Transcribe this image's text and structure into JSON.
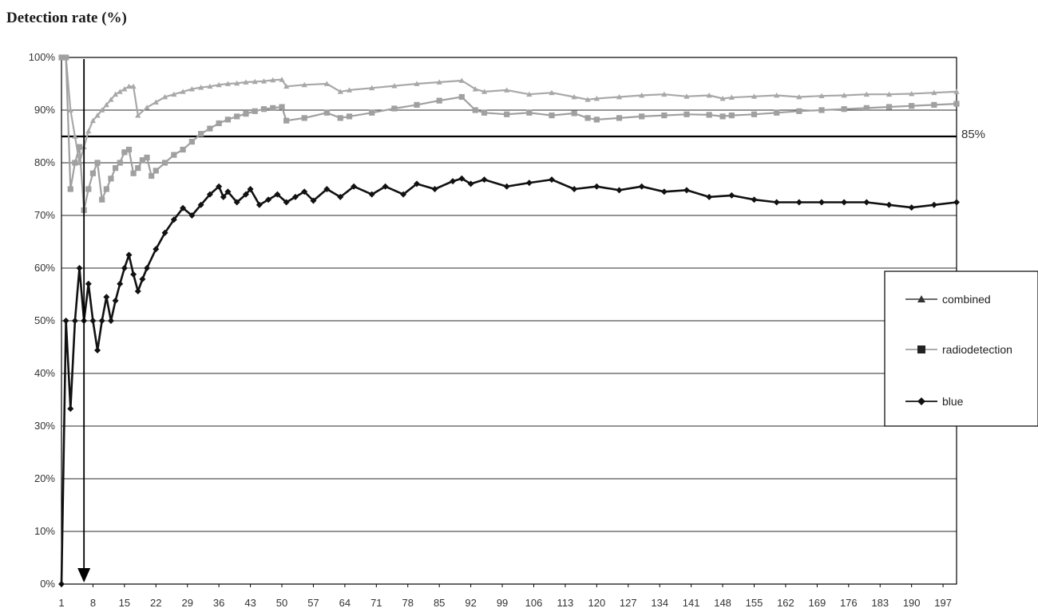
{
  "chart_data": {
    "type": "line",
    "title": "Detection rate (%)",
    "xlabel": "",
    "ylabel": "",
    "x_tick_labels": [
      "1",
      "8",
      "15",
      "22",
      "29",
      "36",
      "43",
      "50",
      "57",
      "64",
      "71",
      "78",
      "85",
      "92",
      "99",
      "106",
      "113",
      "120",
      "127",
      "134",
      "141",
      "148",
      "155",
      "162",
      "169",
      "176",
      "183",
      "190",
      "197"
    ],
    "xlim": [
      1,
      200
    ],
    "y_tick_labels": [
      "0%",
      "10%",
      "20%",
      "30%",
      "40%",
      "50%",
      "60%",
      "70%",
      "80%",
      "90%",
      "100%"
    ],
    "ylim": [
      0,
      100
    ],
    "grid": true,
    "legend_position": "right",
    "reference_line": {
      "value": 85,
      "label": "85%"
    },
    "series": [
      {
        "name": "combined",
        "marker": "triangle",
        "color": "#a8a8a8",
        "x": [
          1,
          2,
          3,
          4,
          5,
          6,
          7,
          8,
          9,
          10,
          11,
          12,
          13,
          14,
          15,
          16,
          17,
          18,
          20,
          22,
          24,
          26,
          28,
          30,
          32,
          34,
          36,
          38,
          40,
          42,
          44,
          46,
          48,
          50,
          51,
          55,
          60,
          63,
          65,
          70,
          75,
          80,
          85,
          90,
          93,
          95,
          100,
          105,
          110,
          115,
          118,
          120,
          125,
          130,
          135,
          140,
          145,
          148,
          150,
          155,
          160,
          165,
          170,
          175,
          180,
          185,
          190,
          195,
          200
        ],
        "y": [
          100,
          100,
          90,
          85,
          80,
          83,
          86,
          88,
          89,
          90,
          91,
          92,
          93,
          93.5,
          94,
          94.5,
          94.5,
          89,
          90.5,
          91.5,
          92.5,
          93,
          93.5,
          94,
          94.3,
          94.5,
          94.8,
          95,
          95.1,
          95.3,
          95.4,
          95.5,
          95.7,
          95.8,
          94.5,
          94.8,
          95,
          93.5,
          93.8,
          94.2,
          94.6,
          95,
          95.3,
          95.6,
          94,
          93.5,
          93.8,
          93,
          93.3,
          92.5,
          92,
          92.2,
          92.5,
          92.8,
          93,
          92.6,
          92.8,
          92.2,
          92.4,
          92.6,
          92.8,
          92.5,
          92.7,
          92.8,
          93,
          93,
          93.1,
          93.3,
          93.5
        ]
      },
      {
        "name": "radiodetection",
        "marker": "square",
        "color": "#a0a0a0",
        "x": [
          1,
          2,
          3,
          4,
          5,
          6,
          7,
          8,
          9,
          10,
          11,
          12,
          13,
          14,
          15,
          16,
          17,
          18,
          19,
          20,
          21,
          22,
          24,
          26,
          28,
          30,
          32,
          34,
          36,
          38,
          40,
          42,
          44,
          46,
          48,
          50,
          51,
          55,
          60,
          63,
          65,
          70,
          75,
          80,
          85,
          90,
          93,
          95,
          100,
          105,
          110,
          115,
          118,
          120,
          125,
          130,
          135,
          140,
          145,
          148,
          150,
          155,
          160,
          165,
          170,
          175,
          180,
          185,
          190,
          195,
          200
        ],
        "y": [
          100,
          100,
          75,
          80,
          83,
          71,
          75,
          78,
          80,
          73,
          75,
          77,
          79,
          80,
          82,
          82.5,
          78,
          79,
          80.5,
          81,
          77.5,
          78.5,
          80,
          81.5,
          82.5,
          84,
          85.5,
          86.5,
          87.5,
          88.2,
          88.8,
          89.3,
          89.8,
          90.2,
          90.4,
          90.6,
          88,
          88.5,
          89.5,
          88.5,
          88.8,
          89.5,
          90.3,
          91,
          91.8,
          92.5,
          90,
          89.5,
          89.2,
          89.5,
          89,
          89.4,
          88.5,
          88.2,
          88.5,
          88.8,
          89,
          89.2,
          89.1,
          88.8,
          89,
          89.2,
          89.5,
          89.8,
          90,
          90.2,
          90.4,
          90.6,
          90.8,
          91,
          91.2
        ]
      },
      {
        "name": "blue",
        "marker": "diamond",
        "color": "#111111",
        "x": [
          1,
          2,
          3,
          4,
          5,
          6,
          7,
          8,
          9,
          10,
          11,
          12,
          13,
          14,
          15,
          16,
          17,
          18,
          19,
          20,
          22,
          24,
          26,
          28,
          30,
          32,
          34,
          36,
          37,
          38,
          40,
          42,
          43,
          45,
          47,
          49,
          51,
          53,
          55,
          57,
          60,
          63,
          66,
          70,
          73,
          77,
          80,
          84,
          88,
          90,
          92,
          95,
          100,
          105,
          110,
          115,
          120,
          125,
          130,
          135,
          140,
          145,
          150,
          155,
          160,
          165,
          170,
          175,
          180,
          185,
          190,
          195,
          200
        ],
        "y": [
          0,
          50,
          33.3,
          50,
          60,
          50,
          57,
          50,
          44.4,
          50,
          54.5,
          50,
          53.8,
          57,
          60,
          62.5,
          58.8,
          55.6,
          57.9,
          60,
          63.6,
          66.7,
          69.2,
          71.4,
          70,
          72,
          74,
          75.5,
          73.5,
          74.5,
          72.5,
          74,
          75,
          72,
          73,
          74,
          72.5,
          73.5,
          74.5,
          72.8,
          75,
          73.5,
          75.5,
          74,
          75.5,
          74,
          76,
          75,
          76.5,
          77,
          76,
          76.8,
          75.5,
          76.2,
          76.8,
          75,
          75.5,
          74.8,
          75.5,
          74.5,
          74.8,
          73.5,
          73.8,
          73,
          72.5,
          72.5,
          72.5,
          72.5,
          72.5,
          72,
          71.5,
          72,
          72.5
        ]
      }
    ]
  },
  "annotation": {
    "arrow_x": 6
  }
}
